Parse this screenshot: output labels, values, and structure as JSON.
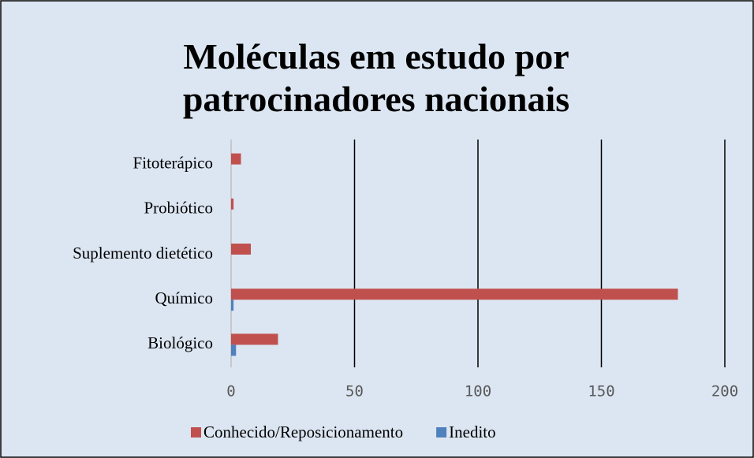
{
  "chart_data": {
    "type": "bar",
    "orientation": "horizontal",
    "title": "Moléculas em estudo por patrocinadores nacionais",
    "categories": [
      "Fitoterápico",
      "Probiótico",
      "Suplemento dietético",
      "Químico",
      "Biológico"
    ],
    "series": [
      {
        "name": "Conhecido/Reposicionamento",
        "color": "#c0504d",
        "values": [
          4,
          1,
          8,
          181,
          19
        ]
      },
      {
        "name": "Inedito",
        "color": "#4f81bd",
        "values": [
          0,
          0,
          0,
          1,
          2
        ]
      }
    ],
    "xlim": [
      0,
      200
    ],
    "xticks": [
      0,
      50,
      100,
      150,
      200
    ],
    "grid": true,
    "legend": "bottom"
  }
}
